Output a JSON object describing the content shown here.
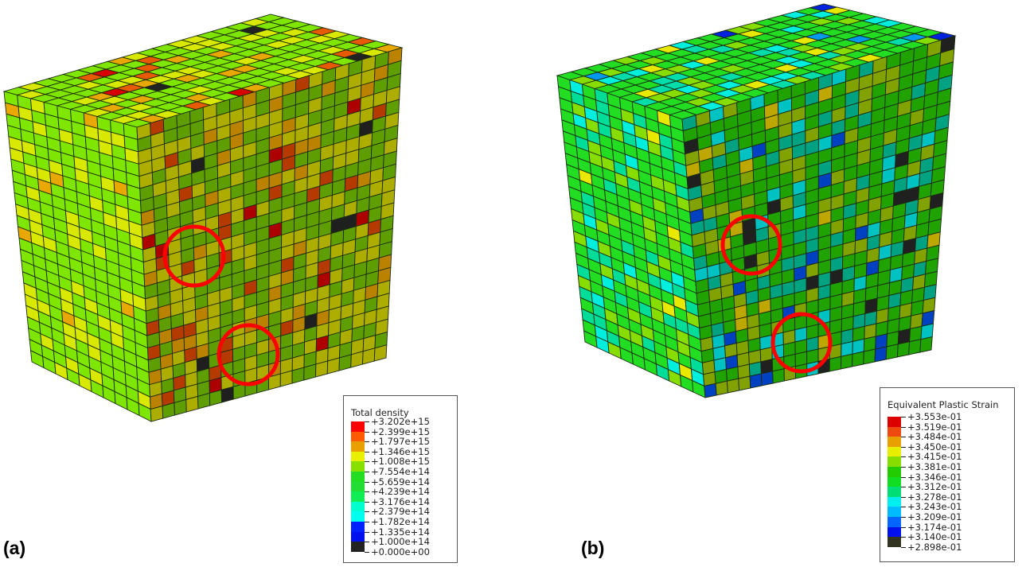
{
  "figure": {
    "panels": [
      {
        "label": "(a)",
        "legend": {
          "title": "Total density",
          "values": [
            "+3.202e+15",
            "+2.399e+15",
            "+1.797e+15",
            "+1.346e+15",
            "+1.008e+15",
            "+7.554e+14",
            "+5.659e+14",
            "+4.239e+14",
            "+3.176e+14",
            "+2.379e+14",
            "+1.782e+14",
            "+1.335e+14",
            "+1.000e+14",
            "+0.000e+00"
          ],
          "colors": [
            "#ff0000",
            "#ff5a00",
            "#e8a000",
            "#e8f000",
            "#88e000",
            "#22dd22",
            "#22dd33",
            "#11ee55",
            "#00ffcc",
            "#00ffee",
            "#0022ff",
            "#0011ee",
            "#222222"
          ]
        },
        "highlight_circles": 2
      },
      {
        "label": "(b)",
        "legend": {
          "title": "Equivalent Plastic Strain",
          "values": [
            "+3.553e-01",
            "+3.519e-01",
            "+3.484e-01",
            "+3.450e-01",
            "+3.415e-01",
            "+3.381e-01",
            "+3.346e-01",
            "+3.312e-01",
            "+3.278e-01",
            "+3.243e-01",
            "+3.209e-01",
            "+3.174e-01",
            "+3.140e-01",
            "+2.898e-01"
          ],
          "colors": [
            "#dd0000",
            "#ee4a10",
            "#e8a000",
            "#e8ee00",
            "#88dd00",
            "#22cc00",
            "#11dd22",
            "#00dd77",
            "#00eeee",
            "#00bbff",
            "#0066ff",
            "#0011ee",
            "#333322"
          ]
        },
        "highlight_circles": 2
      }
    ],
    "highlight_color": "#ff0000"
  }
}
